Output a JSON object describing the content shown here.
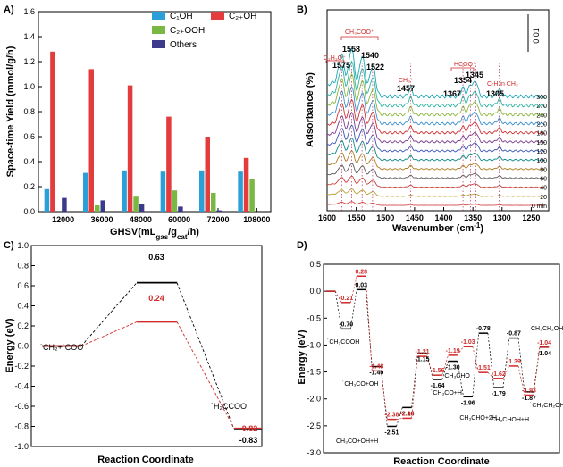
{
  "chart_data": [
    {
      "panel": "A)",
      "type": "bar",
      "xlabel": "GHSV(mL",
      "xlabel_sub": "gas",
      "xlabel_mid": "/g",
      "xlabel_sub2": "cat",
      "xlabel_end": "/h)",
      "ylabel": "Space-time Yield (mmol/g/h)",
      "ylim": [
        0,
        1.6
      ],
      "yticks": [
        "0.0",
        "0.2",
        "0.4",
        "0.6",
        "0.8",
        "1.0",
        "1.2",
        "1.4",
        "1.6"
      ],
      "categories": [
        "12000",
        "36000",
        "48000",
        "60000",
        "72000",
        "108000"
      ],
      "series": [
        {
          "name": "C₁OH",
          "color": "#2a9fd8",
          "values": [
            0.18,
            0.31,
            0.33,
            0.32,
            0.33,
            0.32
          ]
        },
        {
          "name": "C₂₊OH",
          "color": "#e23c3c",
          "values": [
            1.28,
            1.14,
            1.01,
            0.76,
            0.6,
            0.43
          ]
        },
        {
          "name": "C₂₊OOH",
          "color": "#78b843",
          "values": [
            0.0,
            0.05,
            0.12,
            0.17,
            0.15,
            0.26
          ]
        },
        {
          "name": "Others",
          "color": "#3d3a8c",
          "values": [
            0.11,
            0.09,
            0.06,
            0.04,
            0.01,
            0.0
          ]
        }
      ]
    },
    {
      "panel": "B)",
      "type": "line",
      "xlabel": "Wavenumber (cm",
      "xlabel_sup": "-1",
      "xlabel_end": ")",
      "ylabel": "Adsorbance (%)",
      "xlim": [
        1600,
        1220
      ],
      "xticks": [
        "1600",
        "1550",
        "1500",
        "1450",
        "1400",
        "1350",
        "1300",
        "1250"
      ],
      "scale_bar": "0.01",
      "time_labels": [
        "300",
        "270",
        "240",
        "210",
        "180",
        "150",
        "120",
        "100",
        "80",
        "60",
        "40",
        "20",
        "0 min"
      ],
      "peaks": [
        {
          "label": "1575",
          "x": 1575
        },
        {
          "label": "1558",
          "x": 1558
        },
        {
          "label": "1540",
          "x": 1540
        },
        {
          "label": "1522",
          "x": 1522
        },
        {
          "label": "1457",
          "x": 1457
        },
        {
          "label": "1367",
          "x": 1367
        },
        {
          "label": "1354",
          "x": 1354
        },
        {
          "label": "1345",
          "x": 1345
        },
        {
          "label": "1305",
          "x": 1305
        }
      ],
      "annotations": [
        {
          "text": "C₂H₃O⁺",
          "red": true
        },
        {
          "text": "CH₃COO⁺",
          "red": true
        },
        {
          "text": "CH₃⁺",
          "red": true
        },
        {
          "text": "HCOO⁺",
          "red": true
        },
        {
          "text": "C-H in CH₃",
          "red": true
        }
      ]
    },
    {
      "panel": "C)",
      "type": "line",
      "xlabel": "Reaction Coordinate",
      "ylabel": "Energy (eV)",
      "ylim": [
        -1.0,
        1.0
      ],
      "yticks": [
        "-1.0",
        "-0.8",
        "-0.6",
        "-0.4",
        "-0.2",
        "0.0",
        "0.2",
        "0.4",
        "0.6",
        "0.8",
        "1.0"
      ],
      "series": [
        {
          "color": "#000000",
          "values": [
            0.0,
            0.63,
            -0.83
          ]
        },
        {
          "color": "#d02a2a",
          "values": [
            0.0,
            0.24,
            -0.82
          ]
        }
      ],
      "value_labels": [
        "0.63",
        "0.24",
        "-0.82",
        "-0.83"
      ],
      "state_labels": [
        "˙CH₂+˙COO",
        "˙H₂CCOO"
      ]
    },
    {
      "panel": "D)",
      "type": "line",
      "xlabel": "Reaction Coordinate",
      "ylabel": "Energy (eV)",
      "ylim": [
        -3.0,
        0.5
      ],
      "yticks": [
        "0.5",
        "0.0",
        "-0.5",
        "-1.0",
        "-1.5",
        "-2.0",
        "-2.5",
        "-3.0"
      ],
      "series": [
        {
          "color": "#000000",
          "values": [
            0.0,
            -0.7,
            0.03,
            -1.4,
            -2.51,
            -2.16,
            -1.15,
            -1.64,
            -1.3,
            -1.96,
            -0.78,
            -1.79,
            -0.87,
            -1.87,
            -1.04
          ]
        },
        {
          "color": "#d02a2a",
          "values": [
            0.0,
            -0.21,
            0.28,
            -1.48,
            -2.38,
            -2.36,
            -1.21,
            -1.56,
            -1.19,
            -1.03,
            -1.51,
            -1.62,
            -1.39,
            -1.93,
            -1.04
          ]
        }
      ],
      "black_value_labels": [
        "-0.70",
        "0.03",
        "-1.40",
        "-2.51",
        "-2.16",
        "-1.15",
        "-1.64",
        "-1.30",
        "-1.96",
        "-0.78",
        "-1.79",
        "-0.87",
        "-1.87",
        "-1.04"
      ],
      "red_value_labels": [
        "-0.21",
        "0.28",
        "-1.48",
        "-2.38",
        "-2.36",
        "-1.21",
        "-1.56",
        "-1.19",
        "-1.03",
        "-1.51",
        "-1.62",
        "-1.39",
        "-1.93",
        "-1.04"
      ],
      "species_labels": [
        "˙CH₃COOH",
        "˙CH₃CO+OH",
        "CH₃CO+OH+H",
        "˙CH₃CO+H",
        "˙CH₃CHO",
        "˙CH₃CHO+2H",
        "˙CH₃CHOH+H",
        "˙CH₃CH₂OH",
        "CH₃CH₂OH"
      ]
    }
  ]
}
